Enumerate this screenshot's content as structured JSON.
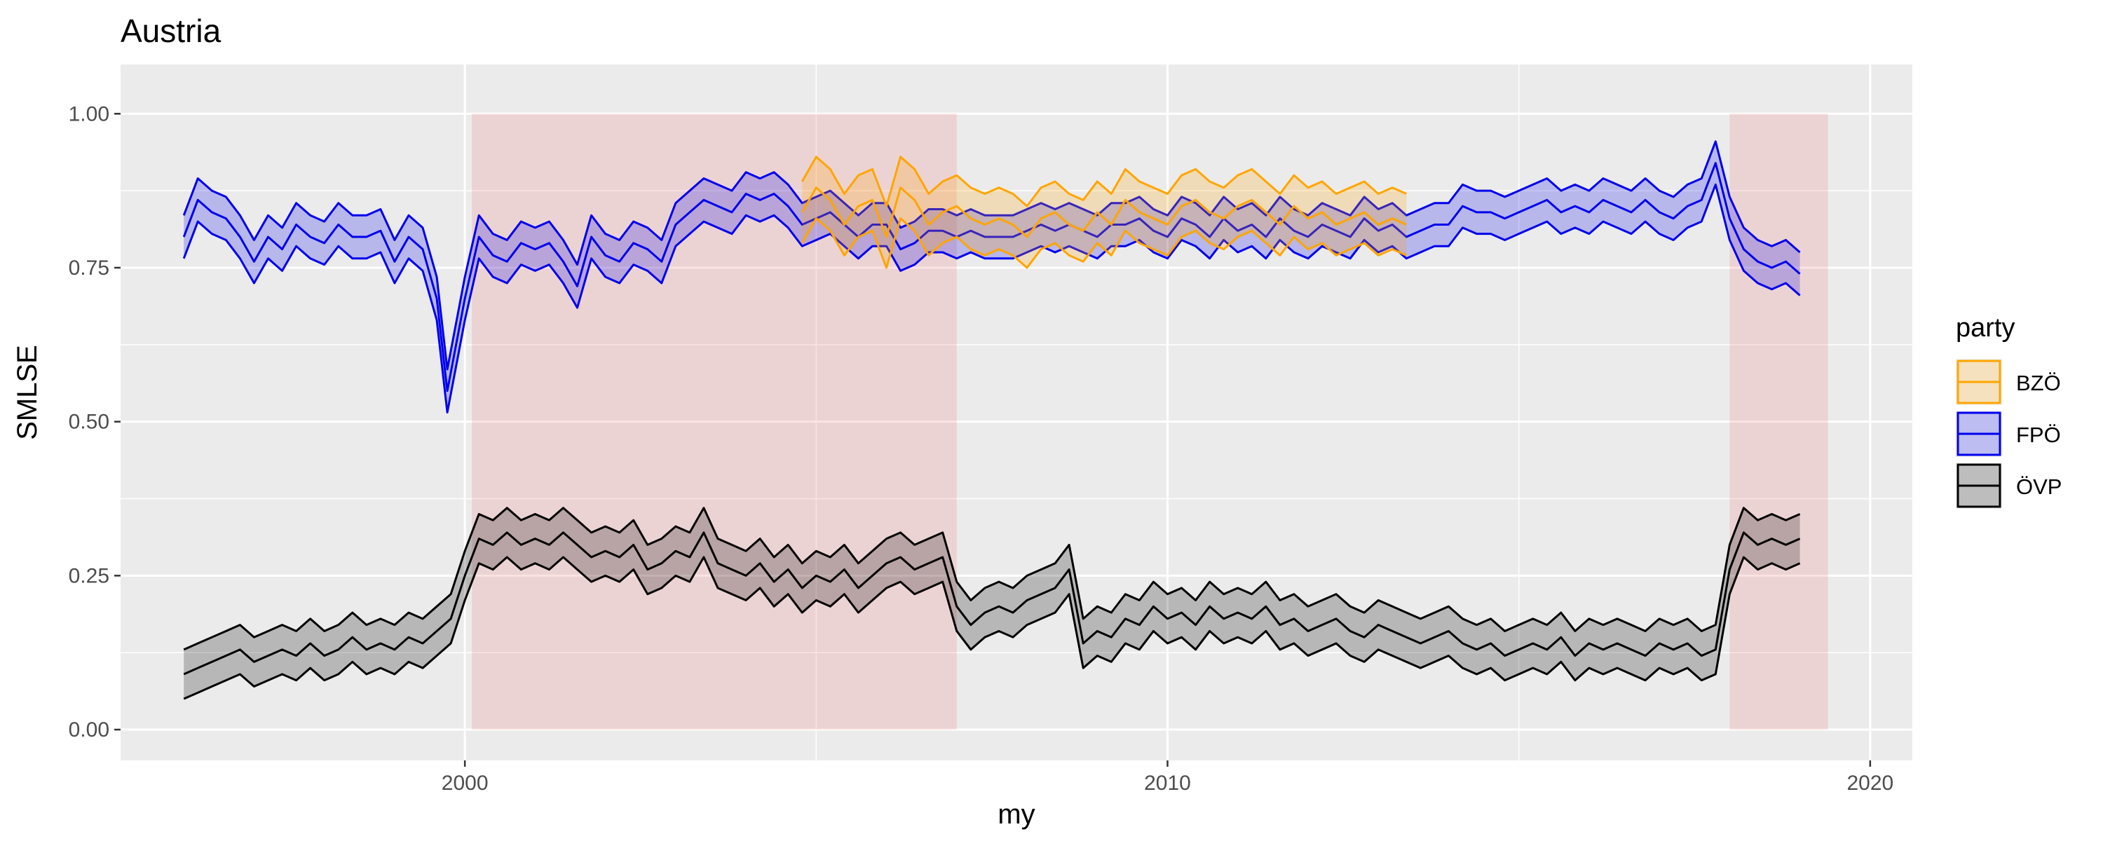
{
  "chart_data": {
    "type": "area",
    "title": "Austria",
    "xlabel": "my",
    "ylabel": "SMLSE",
    "xlim": [
      1995.1,
      2020.6
    ],
    "ylim": [
      -0.05,
      1.08
    ],
    "x_ticks": [
      2000,
      2010,
      2020
    ],
    "x_tick_labels": [
      "2000",
      "2010",
      "2020"
    ],
    "y_ticks": [
      0,
      0.25,
      0.5,
      0.75,
      1.0
    ],
    "y_tick_labels": [
      "0.00",
      "0.25",
      "0.50",
      "0.75",
      "1.00"
    ],
    "grid": true,
    "legend": {
      "title": "party",
      "position": "right"
    },
    "shaded_periods": [
      {
        "start": 2000.1,
        "end": 2007.0,
        "ymin": 0,
        "ymax": 1.0
      },
      {
        "start": 2018.0,
        "end": 2019.4,
        "ymin": 0,
        "ymax": 1.0
      }
    ],
    "series": [
      {
        "name": "FPÖ",
        "color": "#0000ee",
        "fill": "rgba(0,0,238,0.22)",
        "x": [
          1996.0,
          1996.2,
          1996.4,
          1996.6,
          1996.8,
          1997.0,
          1997.2,
          1997.4,
          1997.6,
          1997.8,
          1998.0,
          1998.2,
          1998.4,
          1998.6,
          1998.8,
          1999.0,
          1999.2,
          1999.4,
          1999.6,
          1999.75,
          1999.9,
          2000.0,
          2000.2,
          2000.4,
          2000.6,
          2000.8,
          2001.0,
          2001.2,
          2001.4,
          2001.6,
          2001.8,
          2002.0,
          2002.2,
          2002.4,
          2002.6,
          2002.8,
          2003.0,
          2003.2,
          2003.4,
          2003.6,
          2003.8,
          2004.0,
          2004.2,
          2004.4,
          2004.6,
          2004.8,
          2005.0,
          2005.2,
          2005.4,
          2005.6,
          2005.8,
          2006.0,
          2006.2,
          2006.4,
          2006.6,
          2006.8,
          2007.0,
          2007.2,
          2007.4,
          2007.6,
          2007.8,
          2008.0,
          2008.2,
          2008.4,
          2008.6,
          2008.8,
          2009.0,
          2009.2,
          2009.4,
          2009.6,
          2009.8,
          2010.0,
          2010.2,
          2010.4,
          2010.6,
          2010.8,
          2011.0,
          2011.2,
          2011.4,
          2011.6,
          2011.8,
          2012.0,
          2012.2,
          2012.4,
          2012.6,
          2012.8,
          2013.0,
          2013.2,
          2013.4,
          2013.6,
          2013.8,
          2014.0,
          2014.2,
          2014.4,
          2014.6,
          2014.8,
          2015.0,
          2015.2,
          2015.4,
          2015.6,
          2015.8,
          2016.0,
          2016.2,
          2016.4,
          2016.6,
          2016.8,
          2017.0,
          2017.2,
          2017.4,
          2017.6,
          2017.8,
          2018.0,
          2018.2,
          2018.4,
          2018.6,
          2018.8,
          2019.0
        ],
        "y": [
          0.8,
          0.86,
          0.84,
          0.83,
          0.8,
          0.76,
          0.8,
          0.78,
          0.82,
          0.8,
          0.79,
          0.82,
          0.8,
          0.8,
          0.81,
          0.76,
          0.8,
          0.78,
          0.7,
          0.55,
          0.64,
          0.7,
          0.8,
          0.77,
          0.76,
          0.79,
          0.78,
          0.79,
          0.76,
          0.72,
          0.8,
          0.77,
          0.76,
          0.79,
          0.78,
          0.76,
          0.82,
          0.84,
          0.86,
          0.85,
          0.84,
          0.87,
          0.86,
          0.87,
          0.85,
          0.82,
          0.83,
          0.84,
          0.82,
          0.8,
          0.82,
          0.82,
          0.78,
          0.79,
          0.81,
          0.81,
          0.8,
          0.81,
          0.8,
          0.8,
          0.8,
          0.81,
          0.82,
          0.81,
          0.82,
          0.81,
          0.8,
          0.82,
          0.82,
          0.83,
          0.81,
          0.8,
          0.83,
          0.82,
          0.8,
          0.83,
          0.81,
          0.82,
          0.8,
          0.83,
          0.81,
          0.8,
          0.82,
          0.81,
          0.8,
          0.83,
          0.81,
          0.82,
          0.8,
          0.81,
          0.82,
          0.82,
          0.85,
          0.84,
          0.84,
          0.83,
          0.84,
          0.85,
          0.86,
          0.84,
          0.85,
          0.84,
          0.86,
          0.85,
          0.84,
          0.86,
          0.84,
          0.83,
          0.85,
          0.86,
          0.92,
          0.83,
          0.78,
          0.76,
          0.75,
          0.76,
          0.74
        ],
        "band": 0.035
      },
      {
        "name": "BZÖ",
        "color": "#ffa500",
        "fill": "rgba(255,165,0,0.22)",
        "x": [
          2004.8,
          2005.0,
          2005.2,
          2005.4,
          2005.6,
          2005.8,
          2006.0,
          2006.2,
          2006.4,
          2006.6,
          2006.8,
          2007.0,
          2007.2,
          2007.4,
          2007.6,
          2007.8,
          2008.0,
          2008.2,
          2008.4,
          2008.6,
          2008.8,
          2009.0,
          2009.2,
          2009.4,
          2009.6,
          2009.8,
          2010.0,
          2010.2,
          2010.4,
          2010.6,
          2010.8,
          2011.0,
          2011.2,
          2011.4,
          2011.6,
          2011.8,
          2012.0,
          2012.2,
          2012.4,
          2012.6,
          2012.8,
          2013.0,
          2013.2,
          2013.4
        ],
        "y": [
          0.84,
          0.88,
          0.86,
          0.82,
          0.85,
          0.86,
          0.8,
          0.88,
          0.86,
          0.82,
          0.84,
          0.85,
          0.83,
          0.82,
          0.83,
          0.82,
          0.8,
          0.83,
          0.84,
          0.82,
          0.81,
          0.84,
          0.82,
          0.86,
          0.84,
          0.83,
          0.82,
          0.85,
          0.86,
          0.84,
          0.83,
          0.85,
          0.86,
          0.84,
          0.82,
          0.85,
          0.83,
          0.84,
          0.82,
          0.83,
          0.84,
          0.82,
          0.83,
          0.82
        ],
        "band": 0.05
      },
      {
        "name": "ÖVP",
        "color": "#000000",
        "fill": "rgba(0,0,0,0.22)",
        "x": [
          1996.0,
          1996.2,
          1996.4,
          1996.6,
          1996.8,
          1997.0,
          1997.2,
          1997.4,
          1997.6,
          1997.8,
          1998.0,
          1998.2,
          1998.4,
          1998.6,
          1998.8,
          1999.0,
          1999.2,
          1999.4,
          1999.6,
          1999.8,
          2000.0,
          2000.2,
          2000.4,
          2000.6,
          2000.8,
          2001.0,
          2001.2,
          2001.4,
          2001.6,
          2001.8,
          2002.0,
          2002.2,
          2002.4,
          2002.6,
          2002.8,
          2003.0,
          2003.2,
          2003.4,
          2003.6,
          2003.8,
          2004.0,
          2004.2,
          2004.4,
          2004.6,
          2004.8,
          2005.0,
          2005.2,
          2005.4,
          2005.6,
          2005.8,
          2006.0,
          2006.2,
          2006.4,
          2006.6,
          2006.8,
          2007.0,
          2007.2,
          2007.4,
          2007.6,
          2007.8,
          2008.0,
          2008.2,
          2008.4,
          2008.6,
          2008.8,
          2009.0,
          2009.2,
          2009.4,
          2009.6,
          2009.8,
          2010.0,
          2010.2,
          2010.4,
          2010.6,
          2010.8,
          2011.0,
          2011.2,
          2011.4,
          2011.6,
          2011.8,
          2012.0,
          2012.2,
          2012.4,
          2012.6,
          2012.8,
          2013.0,
          2013.2,
          2013.4,
          2013.6,
          2013.8,
          2014.0,
          2014.2,
          2014.4,
          2014.6,
          2014.8,
          2015.0,
          2015.2,
          2015.4,
          2015.6,
          2015.8,
          2016.0,
          2016.2,
          2016.4,
          2016.6,
          2016.8,
          2017.0,
          2017.2,
          2017.4,
          2017.6,
          2017.8,
          2018.0,
          2018.2,
          2018.4,
          2018.6,
          2018.8,
          2019.0
        ],
        "y": [
          0.09,
          0.1,
          0.11,
          0.12,
          0.13,
          0.11,
          0.12,
          0.13,
          0.12,
          0.14,
          0.12,
          0.13,
          0.15,
          0.13,
          0.14,
          0.13,
          0.15,
          0.14,
          0.16,
          0.18,
          0.25,
          0.31,
          0.3,
          0.32,
          0.3,
          0.31,
          0.3,
          0.32,
          0.3,
          0.28,
          0.29,
          0.28,
          0.3,
          0.26,
          0.27,
          0.29,
          0.28,
          0.32,
          0.27,
          0.26,
          0.25,
          0.27,
          0.24,
          0.26,
          0.23,
          0.25,
          0.24,
          0.26,
          0.23,
          0.25,
          0.27,
          0.28,
          0.26,
          0.27,
          0.28,
          0.2,
          0.17,
          0.19,
          0.2,
          0.19,
          0.21,
          0.22,
          0.23,
          0.26,
          0.14,
          0.16,
          0.15,
          0.18,
          0.17,
          0.2,
          0.18,
          0.19,
          0.17,
          0.2,
          0.18,
          0.19,
          0.18,
          0.2,
          0.17,
          0.18,
          0.16,
          0.17,
          0.18,
          0.16,
          0.15,
          0.17,
          0.16,
          0.15,
          0.14,
          0.15,
          0.16,
          0.14,
          0.13,
          0.14,
          0.12,
          0.13,
          0.14,
          0.13,
          0.15,
          0.12,
          0.14,
          0.13,
          0.14,
          0.13,
          0.12,
          0.14,
          0.13,
          0.14,
          0.12,
          0.13,
          0.26,
          0.32,
          0.3,
          0.31,
          0.3,
          0.31
        ],
        "band": 0.04
      }
    ]
  }
}
